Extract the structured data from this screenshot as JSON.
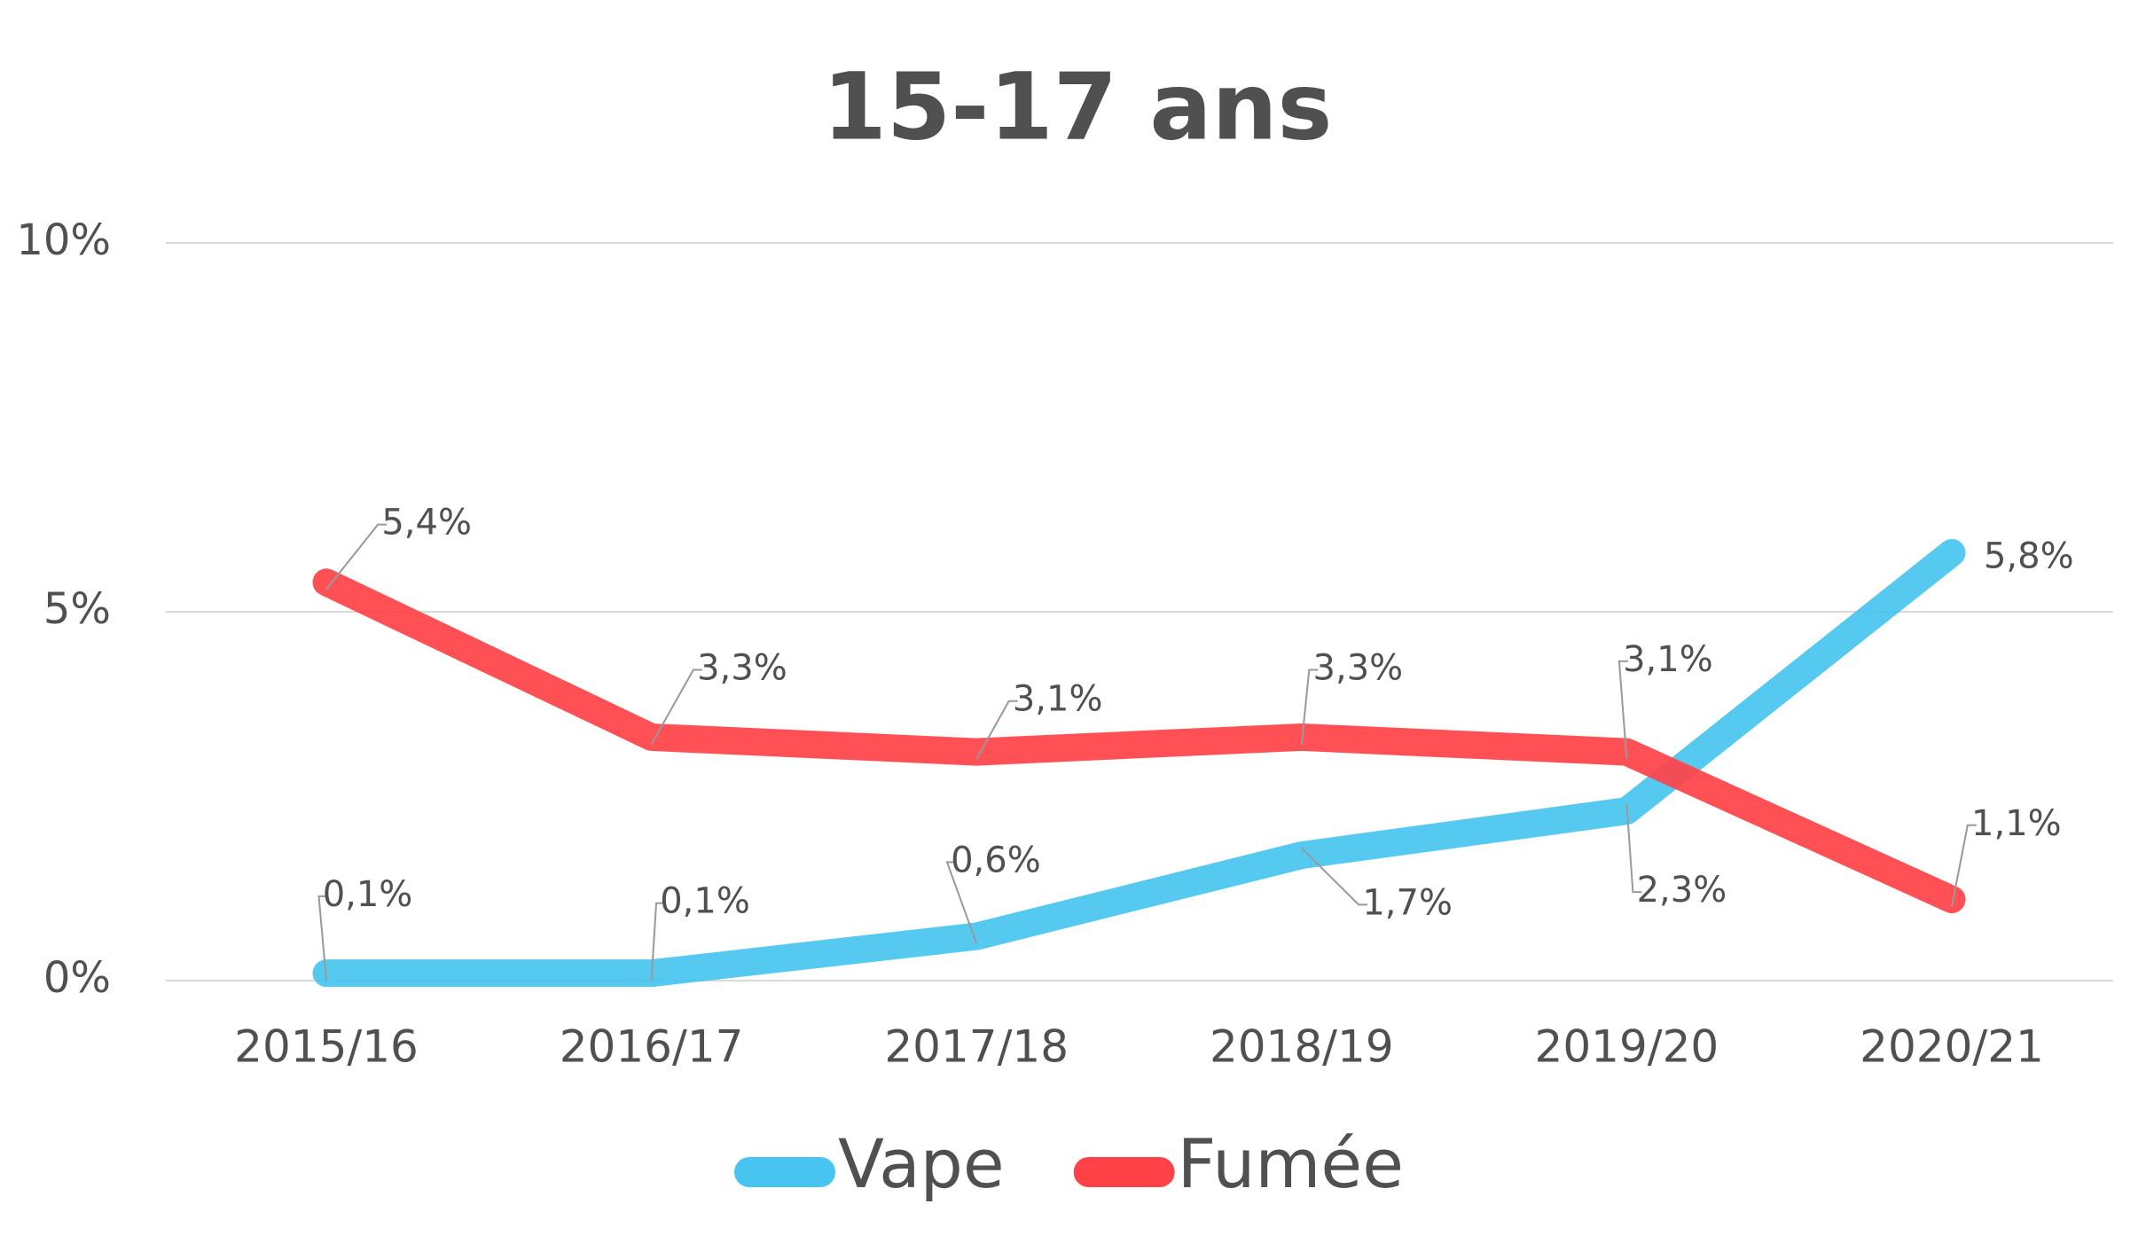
{
  "chart_data": {
    "type": "line",
    "title": "15-17 ans",
    "categories": [
      "2015/16",
      "2016/17",
      "2017/18",
      "2018/19",
      "2019/20",
      "2020/21"
    ],
    "series": [
      {
        "name": "Vape",
        "color": "#48c4f0",
        "values": [
          0.1,
          0.1,
          0.6,
          1.7,
          2.3,
          5.8
        ],
        "value_labels": [
          "0,1%",
          "0,1%",
          "0,6%",
          "1,7%",
          "2,3%",
          "5,8%"
        ]
      },
      {
        "name": "Fumée",
        "color": "#ff4247",
        "values": [
          5.4,
          3.3,
          3.1,
          3.3,
          3.1,
          1.1
        ],
        "value_labels": [
          "5,4%",
          "3,3%",
          "3,1%",
          "3,3%",
          "3,1%",
          "1,1%"
        ]
      }
    ],
    "ylim": [
      0,
      10
    ],
    "yticks": [
      {
        "value": 0,
        "label": "0%"
      },
      {
        "value": 5,
        "label": "5%"
      },
      {
        "value": 10,
        "label": "10%"
      }
    ],
    "grid": true
  }
}
